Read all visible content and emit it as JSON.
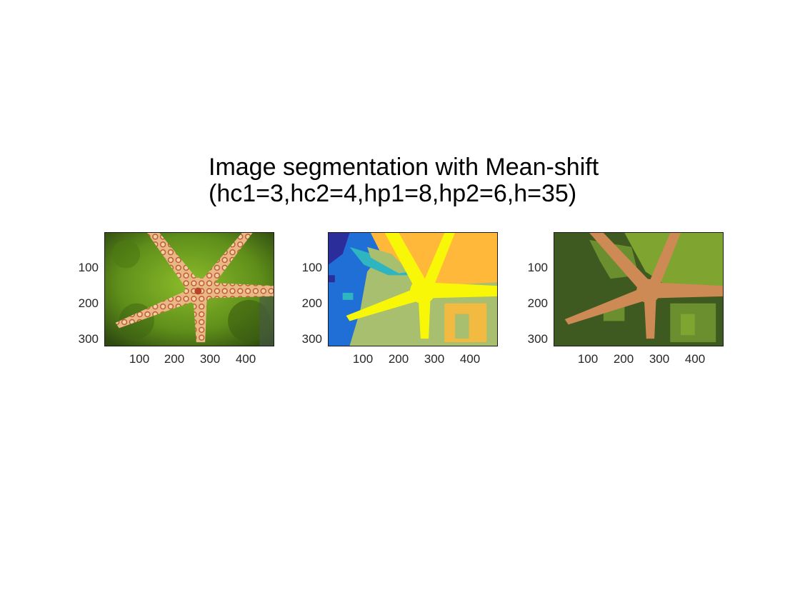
{
  "title": {
    "line1": "Image segmentation with Mean-shift",
    "line2": "(hc1=3,hc2=4,hp1=8,hp2=6,h=35)"
  },
  "axes": {
    "y_ticks": [
      "100",
      "200",
      "300"
    ],
    "x_ticks": [
      "100",
      "200",
      "300",
      "400"
    ]
  },
  "panels": [
    {
      "id": "original",
      "subject": "starfish photograph"
    },
    {
      "id": "segmentation-label-map",
      "subject": "segmentation cluster map"
    },
    {
      "id": "segmentation-mean-color",
      "subject": "segmentation mean color"
    }
  ],
  "colors": {
    "label_yellow": "#f7f707",
    "label_orange": "#ffb83a",
    "label_olive": "#a7bf6e",
    "label_blue": "#1f6fd6",
    "label_navy": "#2b2e9a",
    "label_cyan": "#2fb5bf",
    "seg_star": "#cd8a54",
    "seg_dark": "#3f5a20",
    "seg_mid": "#6b8f2e",
    "seg_light": "#7fa530",
    "photo_moss": "#6d9a1e",
    "photo_star": "#e8b483",
    "photo_spot": "#b5442a"
  }
}
